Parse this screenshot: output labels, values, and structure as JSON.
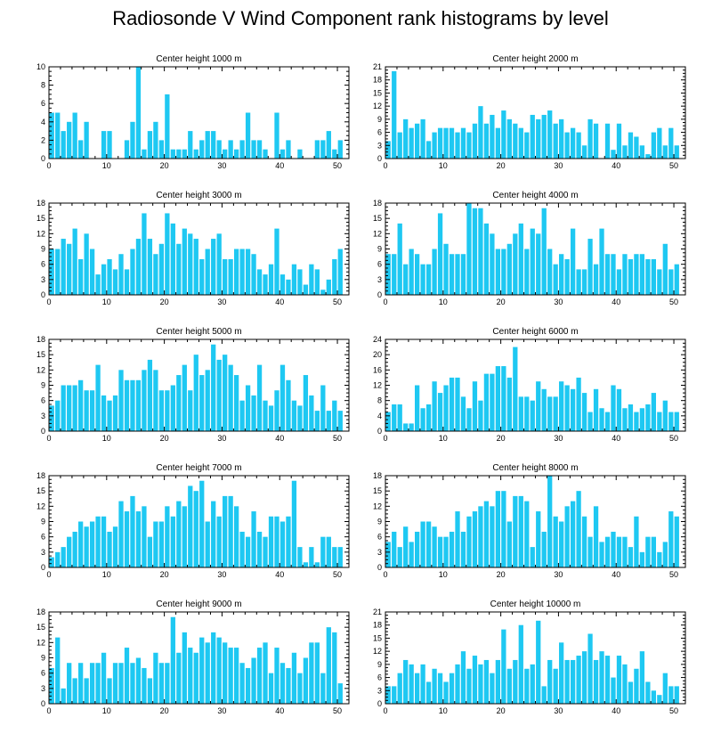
{
  "title": "Radiosonde V Wind Component rank histograms by level",
  "colors": {
    "bar": "#1ec8f2",
    "axis": "#000000",
    "background": "#ffffff"
  },
  "chart_data": [
    {
      "type": "bar",
      "title": "Center height 1000 m",
      "xlim": [
        0,
        52
      ],
      "ylim": [
        0,
        10
      ],
      "xticks": [
        0,
        10,
        20,
        30,
        40,
        50
      ],
      "yticks": [
        0,
        2,
        4,
        6,
        8,
        10
      ],
      "values": [
        5,
        5,
        3,
        4,
        5,
        2,
        4,
        0,
        0,
        3,
        3,
        0,
        0,
        2,
        4,
        10,
        1,
        3,
        4,
        2,
        7,
        1,
        1,
        1,
        3,
        1,
        2,
        3,
        3,
        2,
        1,
        2,
        1,
        2,
        5,
        2,
        2,
        1,
        0,
        5,
        1,
        2,
        0,
        1,
        0,
        0,
        2,
        2,
        3,
        1,
        2
      ]
    },
    {
      "type": "bar",
      "title": "Center height 2000 m",
      "xlim": [
        0,
        52
      ],
      "ylim": [
        0,
        21
      ],
      "xticks": [
        0,
        10,
        20,
        30,
        40,
        50
      ],
      "yticks": [
        0,
        3,
        6,
        9,
        12,
        15,
        18,
        21
      ],
      "values": [
        4,
        20,
        6,
        9,
        7,
        8,
        9,
        4,
        6,
        7,
        7,
        7,
        6,
        7,
        6,
        8,
        12,
        8,
        10,
        7,
        11,
        9,
        8,
        7,
        6,
        10,
        9,
        10,
        11,
        8,
        9,
        6,
        7,
        6,
        3,
        9,
        8,
        0,
        8,
        2,
        8,
        3,
        6,
        5,
        3,
        1,
        6,
        7,
        3,
        7,
        3
      ]
    },
    {
      "type": "bar",
      "title": "Center height 3000 m",
      "xlim": [
        0,
        52
      ],
      "ylim": [
        0,
        18
      ],
      "xticks": [
        0,
        10,
        20,
        30,
        40,
        50
      ],
      "yticks": [
        0,
        3,
        6,
        9,
        12,
        15,
        18
      ],
      "values": [
        9,
        9,
        11,
        10,
        13,
        7,
        12,
        9,
        4,
        6,
        7,
        5,
        8,
        5,
        9,
        11,
        16,
        11,
        8,
        10,
        16,
        14,
        10,
        13,
        12,
        11,
        7,
        9,
        11,
        12,
        7,
        7,
        9,
        9,
        9,
        8,
        5,
        4,
        6,
        13,
        4,
        3,
        6,
        5,
        2,
        6,
        5,
        1,
        3,
        7,
        9
      ]
    },
    {
      "type": "bar",
      "title": "Center height 4000 m",
      "xlim": [
        0,
        52
      ],
      "ylim": [
        0,
        18
      ],
      "xticks": [
        0,
        10,
        20,
        30,
        40,
        50
      ],
      "yticks": [
        0,
        3,
        6,
        9,
        12,
        15,
        18
      ],
      "values": [
        8,
        8,
        14,
        6,
        9,
        8,
        6,
        6,
        9,
        16,
        10,
        8,
        8,
        8,
        18,
        17,
        17,
        14,
        12,
        9,
        9,
        10,
        12,
        14,
        9,
        13,
        12,
        17,
        9,
        6,
        8,
        7,
        13,
        5,
        5,
        11,
        6,
        13,
        8,
        8,
        5,
        8,
        7,
        8,
        8,
        7,
        7,
        5,
        10,
        5,
        6
      ]
    },
    {
      "type": "bar",
      "title": "Center height 5000 m",
      "xlim": [
        0,
        52
      ],
      "ylim": [
        0,
        18
      ],
      "xticks": [
        0,
        10,
        20,
        30,
        40,
        50
      ],
      "yticks": [
        0,
        3,
        6,
        9,
        12,
        15,
        18
      ],
      "values": [
        5,
        6,
        9,
        9,
        9,
        10,
        8,
        8,
        13,
        7,
        6,
        7,
        12,
        10,
        10,
        10,
        12,
        14,
        12,
        8,
        8,
        9,
        11,
        13,
        8,
        15,
        11,
        12,
        17,
        14,
        15,
        13,
        11,
        6,
        9,
        7,
        13,
        6,
        5,
        8,
        13,
        10,
        6,
        5,
        11,
        7,
        4,
        9,
        4,
        6,
        4
      ]
    },
    {
      "type": "bar",
      "title": "Center height 6000 m",
      "xlim": [
        0,
        52
      ],
      "ylim": [
        0,
        24
      ],
      "xticks": [
        0,
        10,
        20,
        30,
        40,
        50
      ],
      "yticks": [
        0,
        4,
        8,
        12,
        16,
        20,
        24
      ],
      "values": [
        5,
        7,
        7,
        2,
        2,
        12,
        6,
        7,
        13,
        10,
        12,
        14,
        14,
        9,
        6,
        13,
        8,
        15,
        15,
        17,
        17,
        14,
        22,
        9,
        9,
        8,
        13,
        11,
        9,
        9,
        13,
        12,
        11,
        14,
        10,
        5,
        11,
        6,
        5,
        12,
        11,
        6,
        7,
        5,
        6,
        7,
        10,
        5,
        8,
        5,
        5
      ]
    },
    {
      "type": "bar",
      "title": "Center height 7000 m",
      "xlim": [
        0,
        52
      ],
      "ylim": [
        0,
        18
      ],
      "xticks": [
        0,
        10,
        20,
        30,
        40,
        50
      ],
      "yticks": [
        0,
        3,
        6,
        9,
        12,
        15,
        18
      ],
      "values": [
        2,
        3,
        4,
        6,
        7,
        9,
        8,
        9,
        10,
        10,
        7,
        8,
        13,
        11,
        14,
        11,
        12,
        6,
        9,
        9,
        12,
        10,
        13,
        12,
        16,
        15,
        17,
        9,
        13,
        10,
        14,
        14,
        12,
        7,
        6,
        11,
        7,
        6,
        10,
        10,
        9,
        10,
        17,
        4,
        1,
        4,
        1,
        6,
        6,
        4,
        4
      ]
    },
    {
      "type": "bar",
      "title": "Center height 8000 m",
      "xlim": [
        0,
        52
      ],
      "ylim": [
        0,
        18
      ],
      "xticks": [
        0,
        10,
        20,
        30,
        40,
        50
      ],
      "yticks": [
        0,
        3,
        6,
        9,
        12,
        15,
        18
      ],
      "values": [
        5,
        7,
        4,
        8,
        5,
        7,
        9,
        9,
        8,
        6,
        6,
        7,
        11,
        7,
        10,
        11,
        12,
        13,
        12,
        15,
        15,
        9,
        14,
        14,
        13,
        4,
        11,
        7,
        18,
        10,
        9,
        12,
        13,
        15,
        10,
        6,
        12,
        5,
        6,
        7,
        6,
        6,
        4,
        10,
        3,
        6,
        6,
        3,
        5,
        11,
        10
      ]
    },
    {
      "type": "bar",
      "title": "Center height 9000 m",
      "xlim": [
        0,
        52
      ],
      "ylim": [
        0,
        18
      ],
      "xticks": [
        0,
        10,
        20,
        30,
        40,
        50
      ],
      "yticks": [
        0,
        3,
        6,
        9,
        12,
        15,
        18
      ],
      "values": [
        7,
        13,
        3,
        8,
        5,
        8,
        5,
        8,
        8,
        10,
        5,
        8,
        8,
        11,
        8,
        9,
        7,
        5,
        10,
        8,
        8,
        17,
        10,
        14,
        11,
        10,
        13,
        12,
        14,
        13,
        12,
        11,
        11,
        8,
        7,
        9,
        11,
        12,
        6,
        11,
        8,
        7,
        10,
        6,
        9,
        12,
        12,
        6,
        15,
        14,
        4
      ]
    },
    {
      "type": "bar",
      "title": "Center height 10000 m",
      "xlim": [
        0,
        52
      ],
      "ylim": [
        0,
        21
      ],
      "xticks": [
        0,
        10,
        20,
        30,
        40,
        50
      ],
      "yticks": [
        0,
        3,
        6,
        9,
        12,
        15,
        18,
        21
      ],
      "values": [
        4,
        4,
        7,
        10,
        9,
        7,
        9,
        5,
        8,
        7,
        5,
        7,
        9,
        12,
        8,
        11,
        9,
        10,
        7,
        10,
        17,
        8,
        10,
        18,
        8,
        9,
        19,
        4,
        10,
        8,
        14,
        10,
        10,
        11,
        12,
        16,
        10,
        12,
        11,
        6,
        11,
        9,
        5,
        8,
        12,
        5,
        3,
        2,
        7,
        4,
        4
      ]
    }
  ]
}
